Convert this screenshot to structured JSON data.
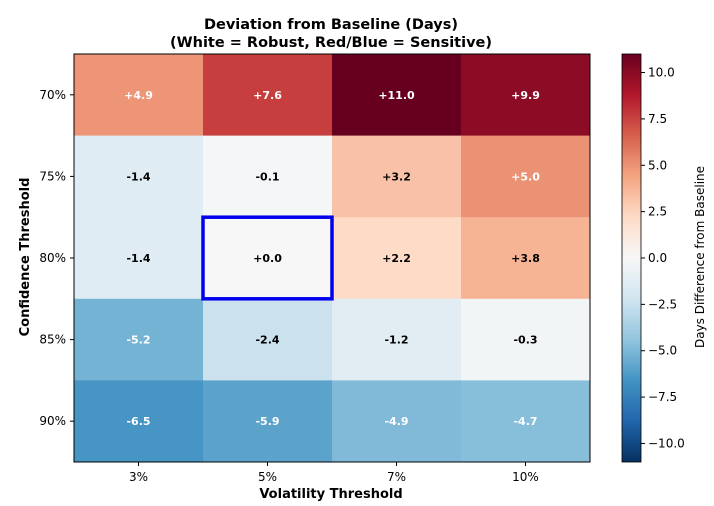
{
  "chart_data": {
    "type": "heatmap",
    "title_line1": "Deviation from Baseline (Days)",
    "title_line2": "(White = Robust, Red/Blue = Sensitive)",
    "xlabel": "Volatility Threshold",
    "ylabel": "Confidence Threshold",
    "x_categories": [
      "3%",
      "5%",
      "7%",
      "10%"
    ],
    "y_categories": [
      "70%",
      "75%",
      "80%",
      "85%",
      "90%"
    ],
    "values": [
      [
        4.9,
        7.6,
        11.0,
        9.9
      ],
      [
        -1.4,
        -0.1,
        3.2,
        5.0
      ],
      [
        -1.4,
        0.0,
        2.2,
        3.8
      ],
      [
        -5.2,
        -2.4,
        -1.2,
        -0.3
      ],
      [
        -6.5,
        -5.9,
        -4.9,
        -4.7
      ]
    ],
    "cell_labels": [
      [
        "+4.9",
        "+7.6",
        "+11.0",
        "+9.9"
      ],
      [
        "-1.4",
        "-0.1",
        "+3.2",
        "+5.0"
      ],
      [
        "-1.4",
        "+0.0",
        "+2.2",
        "+3.8"
      ],
      [
        "-5.2",
        "-2.4",
        "-1.2",
        "-0.3"
      ],
      [
        "-6.5",
        "-5.9",
        "-4.9",
        "-4.7"
      ]
    ],
    "highlight_cell": {
      "row": 2,
      "col": 1,
      "color": "#0000ee"
    },
    "colorbar": {
      "label": "Days Difference from Baseline",
      "range": [
        -11.0,
        11.0
      ],
      "ticks": [
        10.0,
        7.5,
        5.0,
        2.5,
        0.0,
        -2.5,
        -5.0,
        -7.5,
        -10.0
      ],
      "tick_labels": [
        "10.0",
        "7.5",
        "5.0",
        "2.5",
        "0.0",
        "−2.5",
        "−5.0",
        "−7.5",
        "−10.0"
      ],
      "colormap": "RdBu_r"
    }
  }
}
